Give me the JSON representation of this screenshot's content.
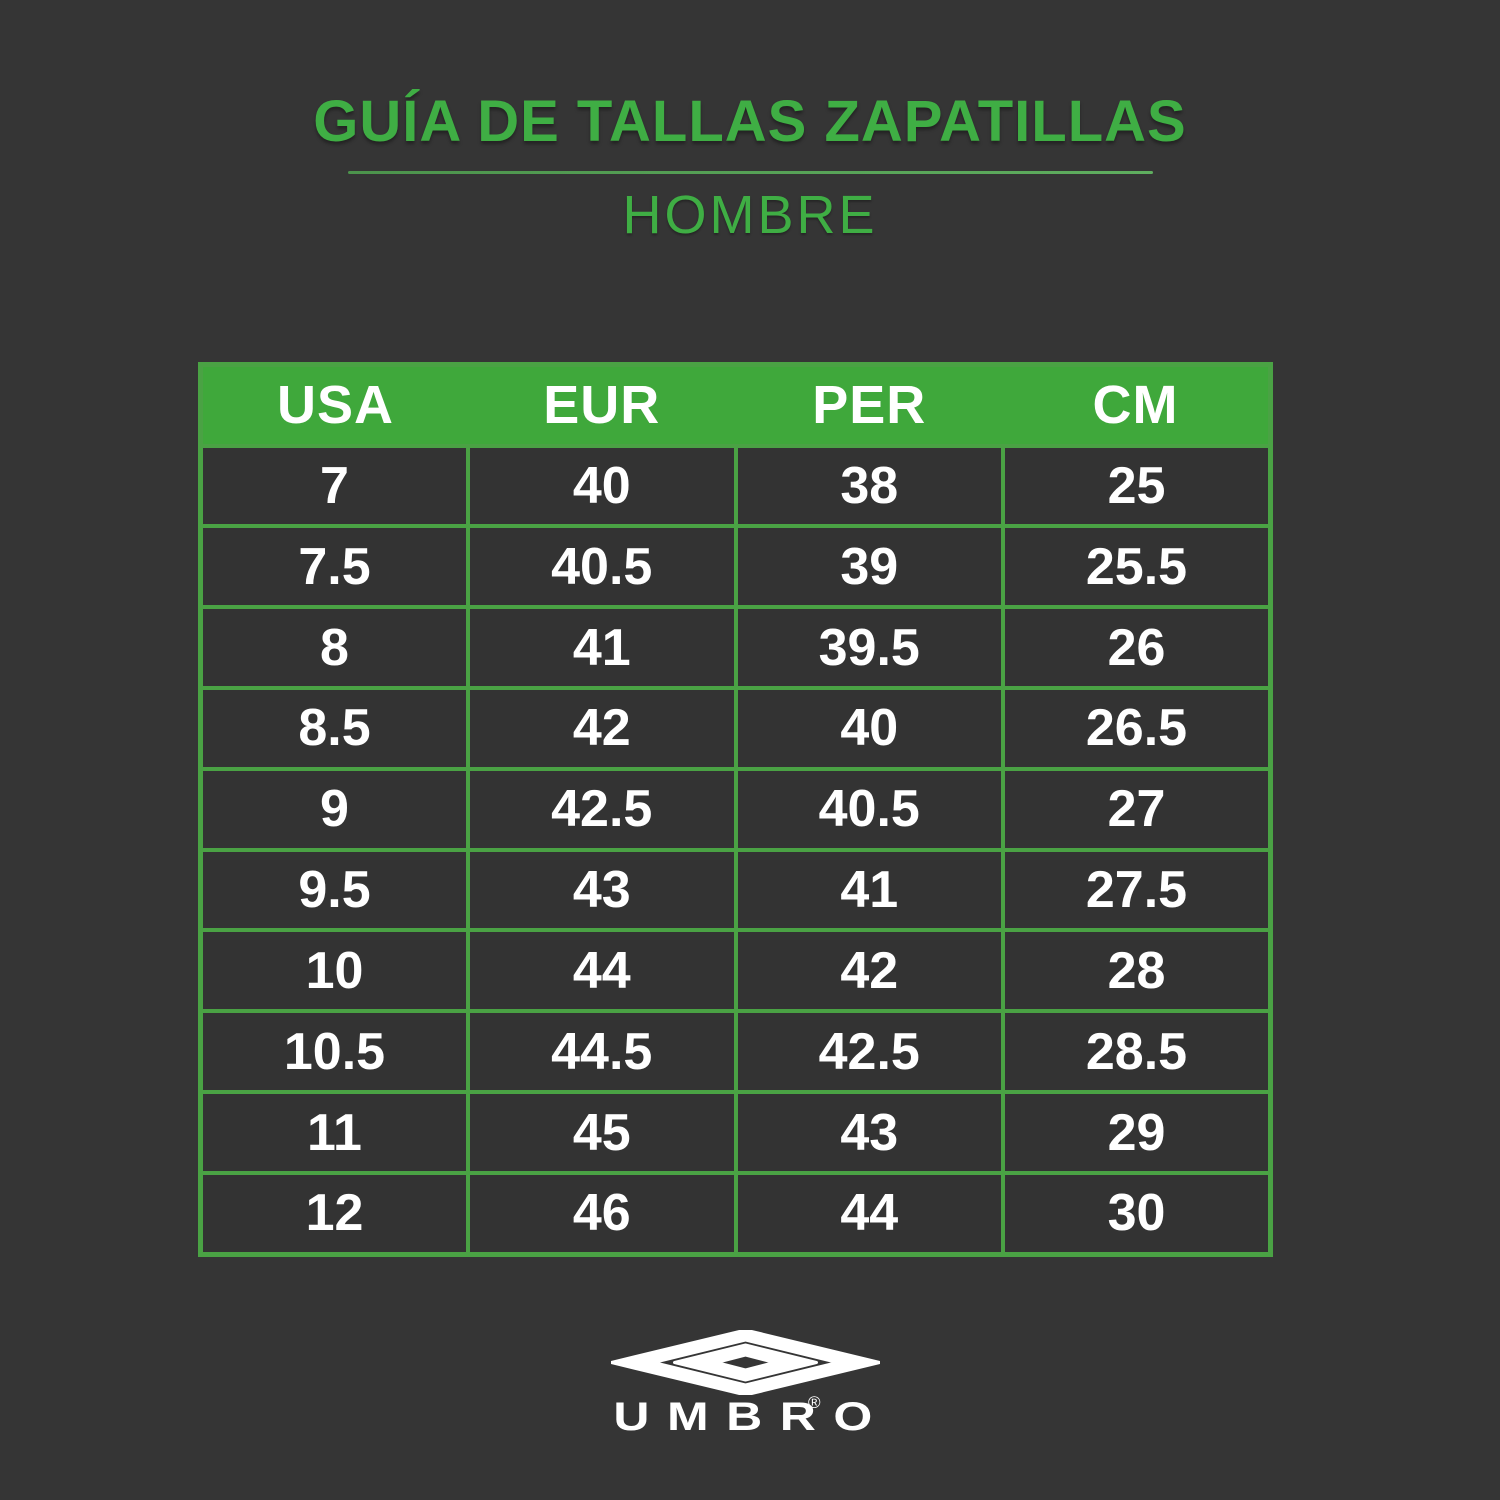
{
  "header": {
    "title": "GUÍA DE TALLAS ZAPATILLAS",
    "subtitle": "HOMBRE"
  },
  "table": {
    "columns": [
      "USA",
      "EUR",
      "PER",
      "CM"
    ],
    "rows": [
      [
        "7",
        "40",
        "38",
        "25"
      ],
      [
        "7.5",
        "40.5",
        "39",
        "25.5"
      ],
      [
        "8",
        "41",
        "39.5",
        "26"
      ],
      [
        "8.5",
        "42",
        "40",
        "26.5"
      ],
      [
        "9",
        "42.5",
        "40.5",
        "27"
      ],
      [
        "9.5",
        "43",
        "41",
        "27.5"
      ],
      [
        "10",
        "44",
        "42",
        "28"
      ],
      [
        "10.5",
        "44.5",
        "42.5",
        "28.5"
      ],
      [
        "11",
        "45",
        "43",
        "29"
      ],
      [
        "12",
        "46",
        "44",
        "30"
      ]
    ]
  },
  "logo": {
    "brand": "UMBRO",
    "registered": "®"
  },
  "colors": {
    "bg": "#353535",
    "cell-bg": "#333333",
    "header-green": "#3fa83b",
    "grid-green": "#4aa244",
    "accent-green": "#3fae44",
    "underline-green": "#56a156",
    "white": "#ffffff"
  }
}
